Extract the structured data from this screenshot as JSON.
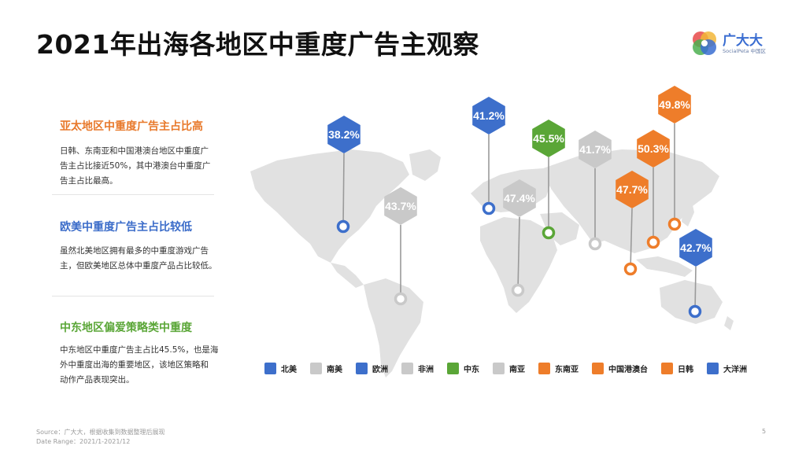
{
  "title": "2021年出海各地区中重度广告主观察",
  "logo": {
    "name": "广大大",
    "sub": "SocialPeta 中国区",
    "colors": [
      "#e95353",
      "#f2b638",
      "#4caf50",
      "#3a6dd1"
    ]
  },
  "sections": [
    {
      "title": "亚太地区中重度广告主占比高",
      "color": "#e8792b",
      "lines": [
        "日韩、东南亚和中国港澳台地区中重度广",
        "告主占比接近50%，其中港澳台中重度广",
        "告主占比最高。"
      ]
    },
    {
      "title": "欧美中重度广告主占比较低",
      "color": "#3b6cc9",
      "lines": [
        "虽然北美地区拥有最多的中重度游戏广告",
        "主，但欧美地区总体中重度产品占比较低。"
      ]
    },
    {
      "title": "中东地区偏爱策略类中重度",
      "color": "#5aa637",
      "lines": [
        "中东地区中重度广告主占比45.5%，也是海",
        "外中重度出海的重要地区，该地区策略和",
        "动作产品表现突出。"
      ]
    }
  ],
  "pins": [
    {
      "region": "北美",
      "value": "38.2%",
      "color": "#3d6fcb"
    },
    {
      "region": "南美",
      "value": "43.7%",
      "color": "#c9c9c9"
    },
    {
      "region": "欧洲",
      "value": "41.2%",
      "color": "#3d6fcb"
    },
    {
      "region": "非洲",
      "value": "47.4%",
      "color": "#c9c9c9"
    },
    {
      "region": "中东",
      "value": "45.5%",
      "color": "#5aa637"
    },
    {
      "region": "南亚",
      "value": "41.7%",
      "color": "#c9c9c9"
    },
    {
      "region": "东南亚",
      "value": "47.7%",
      "color": "#ee7d2a"
    },
    {
      "region": "中国港澳台",
      "value": "50.3%",
      "color": "#ee7d2a"
    },
    {
      "region": "日韩",
      "value": "49.8%",
      "color": "#ee7d2a"
    },
    {
      "region": "大洋洲",
      "value": "42.7%",
      "color": "#3d6fcb"
    }
  ],
  "legend": [
    {
      "label": "北美",
      "color": "#3d6fcb"
    },
    {
      "label": "南美",
      "color": "#c9c9c9"
    },
    {
      "label": "欧洲",
      "color": "#3d6fcb"
    },
    {
      "label": "非洲",
      "color": "#c9c9c9"
    },
    {
      "label": "中东",
      "color": "#5aa637"
    },
    {
      "label": "南亚",
      "color": "#c9c9c9"
    },
    {
      "label": "东南亚",
      "color": "#ee7d2a"
    },
    {
      "label": "中国港澳台",
      "color": "#ee7d2a"
    },
    {
      "label": "日韩",
      "color": "#ee7d2a"
    },
    {
      "label": "大洋洲",
      "color": "#3d6fcb"
    }
  ],
  "footer": {
    "source": "Source：广大大，根据收集到数据整理后展现",
    "range": "Date Range：2021/1-2021/12",
    "page": "5"
  }
}
